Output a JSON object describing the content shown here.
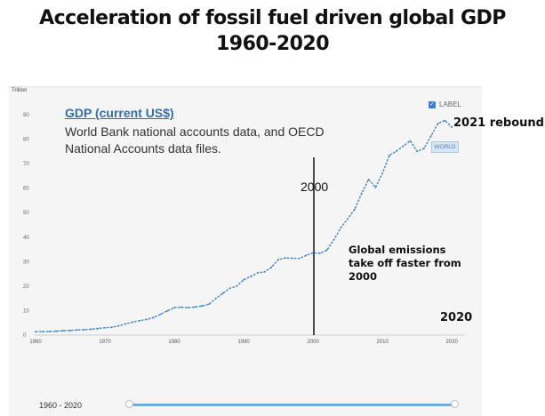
{
  "title_line1": "Acceleration of fossil fuel driven global GDP",
  "title_line2": "1960-2020",
  "unit_label": "Trillion",
  "info": {
    "indicator_link": "GDP (current US$)",
    "source": "World Bank national accounts data, and OECD National Accounts data files."
  },
  "legend": {
    "checked_icon": "check-icon",
    "label": "LABEL"
  },
  "world_tag": "WORLD",
  "annotations": {
    "rebound": "2021 rebound",
    "marker_year": "2000",
    "emissions": "Global emissions take off faster from 2000",
    "end_year": "2020"
  },
  "range_selector": {
    "label": "1960 - 2020"
  },
  "colors": {
    "line": "#3a84c4",
    "accent": "#2f6fb0",
    "slider": "#6aaee4"
  },
  "chart_data": {
    "type": "line",
    "title": "GDP (current US$)",
    "xlabel": "",
    "ylabel": "Trillion",
    "xlim": [
      1960,
      2021
    ],
    "ylim": [
      0,
      90
    ],
    "y_ticks": [
      0,
      10,
      20,
      30,
      40,
      50,
      60,
      70,
      80,
      90
    ],
    "x_ticks": [
      1960,
      1970,
      1980,
      1990,
      2000,
      2010,
      2020
    ],
    "grid": false,
    "legend_position": "top-right",
    "series": [
      {
        "name": "WORLD",
        "x": [
          1960,
          1961,
          1962,
          1963,
          1964,
          1965,
          1966,
          1967,
          1968,
          1969,
          1970,
          1971,
          1972,
          1973,
          1974,
          1975,
          1976,
          1977,
          1978,
          1979,
          1980,
          1981,
          1982,
          1983,
          1984,
          1985,
          1986,
          1987,
          1988,
          1989,
          1990,
          1991,
          1992,
          1993,
          1994,
          1995,
          1996,
          1997,
          1998,
          1999,
          2000,
          2001,
          2002,
          2003,
          2004,
          2005,
          2006,
          2007,
          2008,
          2009,
          2010,
          2011,
          2012,
          2013,
          2014,
          2015,
          2016,
          2017,
          2018,
          2019,
          2020
        ],
        "values": [
          1.4,
          1.4,
          1.5,
          1.6,
          1.8,
          1.9,
          2.1,
          2.2,
          2.4,
          2.7,
          3.0,
          3.2,
          3.8,
          4.6,
          5.3,
          5.9,
          6.4,
          7.2,
          8.5,
          9.9,
          11.2,
          11.4,
          11.2,
          11.5,
          11.9,
          12.6,
          15.0,
          17.1,
          19.1,
          20.0,
          22.6,
          23.9,
          25.4,
          25.8,
          27.7,
          30.9,
          31.5,
          31.4,
          31.3,
          32.5,
          33.6,
          33.4,
          34.7,
          38.9,
          43.8,
          47.5,
          51.4,
          57.9,
          63.6,
          60.3,
          66.1,
          73.4,
          75.1,
          77.2,
          79.3,
          75.0,
          76.2,
          81.3,
          86.4,
          87.6,
          84.9
        ]
      }
    ]
  }
}
